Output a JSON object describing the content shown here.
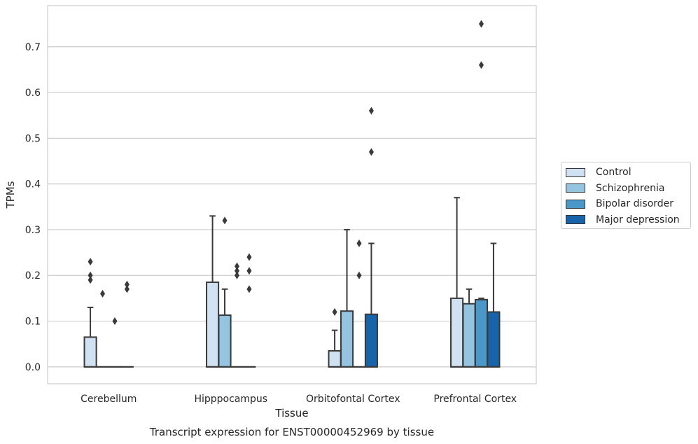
{
  "chart_data": {
    "type": "boxplot",
    "title": "Transcript expression for ENST00000452969 by tissue",
    "xlabel": "Tissue",
    "ylabel": "TPMs",
    "ylim": [
      -0.037,
      0.79
    ],
    "yticks": [
      "0.0",
      "0.1",
      "0.2",
      "0.3",
      "0.4",
      "0.5",
      "0.6",
      "0.7"
    ],
    "grid": true,
    "legend_position": "right",
    "categories": [
      "Cerebellum",
      "Hipppocampus",
      "Orbitofontal Cortex",
      "Prefrontal Cortex"
    ],
    "series": [
      {
        "name": "Control",
        "color": "#d0e1f2",
        "boxes": [
          {
            "min": 0,
            "q1": 0,
            "median": 0,
            "q3": 0.065,
            "max": 0.13,
            "outliers": [
              0.19,
              0.2,
              0.23
            ]
          },
          {
            "min": 0,
            "q1": 0,
            "median": 0,
            "q3": 0.185,
            "max": 0.33,
            "outliers": []
          },
          {
            "min": 0,
            "q1": 0,
            "median": 0,
            "q3": 0.035,
            "max": 0.08,
            "outliers": [
              0.12
            ]
          },
          {
            "min": 0,
            "q1": 0,
            "median": 0,
            "q3": 0.15,
            "max": 0.37,
            "outliers": []
          }
        ]
      },
      {
        "name": "Schizophrenia",
        "color": "#94c4df",
        "boxes": [
          {
            "min": 0,
            "q1": 0,
            "median": 0,
            "q3": 0,
            "max": 0,
            "outliers": [
              0.16
            ]
          },
          {
            "min": 0,
            "q1": 0,
            "median": 0,
            "q3": 0.113,
            "max": 0.17,
            "outliers": [
              0.32
            ]
          },
          {
            "min": 0,
            "q1": 0,
            "median": 0,
            "q3": 0.122,
            "max": 0.3,
            "outliers": []
          },
          {
            "min": 0,
            "q1": 0,
            "median": 0,
            "q3": 0.138,
            "max": 0.17,
            "outliers": []
          }
        ]
      },
      {
        "name": "Bipolar disorder",
        "color": "#4a98c9",
        "boxes": [
          {
            "min": 0,
            "q1": 0,
            "median": 0,
            "q3": 0,
            "max": 0,
            "outliers": [
              0.1
            ]
          },
          {
            "min": 0,
            "q1": 0,
            "median": 0,
            "q3": 0,
            "max": 0,
            "outliers": [
              0.2,
              0.21,
              0.22
            ]
          },
          {
            "min": 0,
            "q1": 0,
            "median": 0,
            "q3": 0,
            "max": 0,
            "outliers": [
              0.2,
              0.27
            ]
          },
          {
            "min": 0,
            "q1": 0,
            "median": 0,
            "q3": 0.147,
            "max": 0.15,
            "outliers": [
              0.66,
              0.75
            ]
          }
        ]
      },
      {
        "name": "Major depression",
        "color": "#1764ab",
        "boxes": [
          {
            "min": 0,
            "q1": 0,
            "median": 0,
            "q3": 0,
            "max": 0,
            "outliers": [
              0.17,
              0.18
            ]
          },
          {
            "min": 0,
            "q1": 0,
            "median": 0,
            "q3": 0,
            "max": 0,
            "outliers": [
              0.17,
              0.21,
              0.24
            ]
          },
          {
            "min": 0,
            "q1": 0,
            "median": 0,
            "q3": 0.115,
            "max": 0.27,
            "outliers": [
              0.47,
              0.56
            ]
          },
          {
            "min": 0,
            "q1": 0,
            "median": 0,
            "q3": 0.12,
            "max": 0.27,
            "outliers": []
          }
        ]
      }
    ]
  }
}
